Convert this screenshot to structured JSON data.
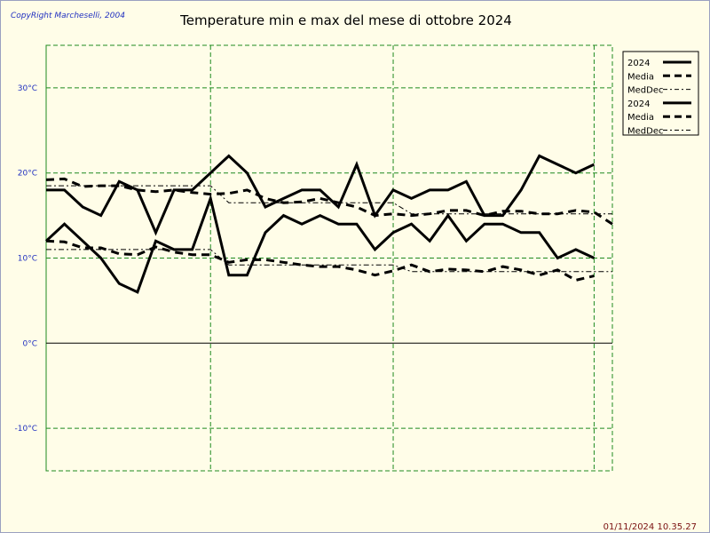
{
  "copyright": "CopyRight Marcheselli, 2004",
  "timestamp": "01/11/2024 10.35.27",
  "chart_data": {
    "type": "line",
    "title": "Temperature min e max del mese di ottobre 2024",
    "xlabel": "",
    "ylabel": "",
    "ylim": [
      -15,
      35
    ],
    "xlim": [
      1,
      32
    ],
    "y_ticks": [
      -10,
      0,
      10,
      20,
      30
    ],
    "y_tick_labels": [
      "-10°C",
      "0°C",
      "10°C",
      "20°C",
      "30°C"
    ],
    "x_gridlines": [
      1,
      10,
      20,
      31
    ],
    "grid": true,
    "legend_position": "right",
    "legend": [
      {
        "label": "2024",
        "style": "solid"
      },
      {
        "label": "Media",
        "style": "dashed"
      },
      {
        "label": "MedDec",
        "style": "dashdot"
      },
      {
        "label": "2024",
        "style": "solid"
      },
      {
        "label": "Media",
        "style": "dashed"
      },
      {
        "label": "MedDec",
        "style": "dashdot"
      }
    ],
    "x": [
      1,
      2,
      3,
      4,
      5,
      6,
      7,
      8,
      9,
      10,
      11,
      12,
      13,
      14,
      15,
      16,
      17,
      18,
      19,
      20,
      21,
      22,
      23,
      24,
      25,
      26,
      27,
      28,
      29,
      30,
      31,
      32
    ],
    "series": [
      {
        "style": "solid",
        "values": [
          18,
          18,
          16,
          15,
          19,
          18,
          13,
          18,
          18,
          20,
          22,
          20,
          16,
          17,
          18,
          18,
          16,
          21,
          15,
          18,
          17,
          18,
          18,
          19,
          15,
          15,
          18,
          22,
          21,
          20,
          21,
          null
        ]
      },
      {
        "style": "dashed",
        "values": [
          19.2,
          19.3,
          18.4,
          18.5,
          18.5,
          18.0,
          17.8,
          18.0,
          17.7,
          17.5,
          17.6,
          18.0,
          17.0,
          16.5,
          16.6,
          17.0,
          16.5,
          16.0,
          15.0,
          15.2,
          15.0,
          15.2,
          15.6,
          15.6,
          15.0,
          15.5,
          15.5,
          15.2,
          15.2,
          15.6,
          15.4,
          14.0
        ]
      },
      {
        "style": "dashdot",
        "values": [
          18.5,
          18.5,
          18.5,
          18.5,
          18.5,
          18.5,
          18.5,
          18.5,
          18.5,
          18.5,
          16.5,
          16.5,
          16.5,
          16.5,
          16.5,
          16.5,
          16.5,
          16.5,
          16.5,
          16.5,
          15.2,
          15.2,
          15.2,
          15.2,
          15.2,
          15.2,
          15.2,
          15.2,
          15.2,
          15.2,
          15.2,
          15.2
        ]
      },
      {
        "style": "solid",
        "values": [
          12,
          14,
          12,
          10,
          7,
          6,
          12,
          11,
          11,
          17,
          8,
          8,
          13,
          15,
          14,
          15,
          14,
          14,
          11,
          13,
          14,
          12,
          15,
          12,
          14,
          14,
          13,
          13,
          10,
          11,
          10,
          null
        ]
      },
      {
        "style": "dashed",
        "values": [
          12.0,
          11.9,
          11.2,
          11.2,
          10.5,
          10.4,
          11.3,
          10.7,
          10.4,
          10.4,
          9.5,
          9.8,
          9.8,
          9.5,
          9.2,
          9.0,
          9.0,
          8.6,
          8.0,
          8.5,
          9.2,
          8.4,
          8.7,
          8.6,
          8.4,
          9.0,
          8.6,
          8.0,
          8.6,
          7.4,
          7.9,
          null
        ]
      },
      {
        "style": "dashdot",
        "values": [
          11.0,
          11.0,
          11.0,
          11.0,
          11.0,
          11.0,
          11.0,
          11.0,
          11.0,
          11.0,
          9.2,
          9.2,
          9.2,
          9.2,
          9.2,
          9.2,
          9.2,
          9.2,
          9.2,
          9.2,
          8.4,
          8.4,
          8.4,
          8.4,
          8.4,
          8.4,
          8.4,
          8.4,
          8.4,
          8.4,
          8.4,
          8.4
        ]
      }
    ],
    "colors": {
      "background": "#fffde8",
      "grid": "#1f8a1f",
      "axis_labels": "#2030c0",
      "series": "#000000",
      "stamp": "#7a1010"
    }
  }
}
